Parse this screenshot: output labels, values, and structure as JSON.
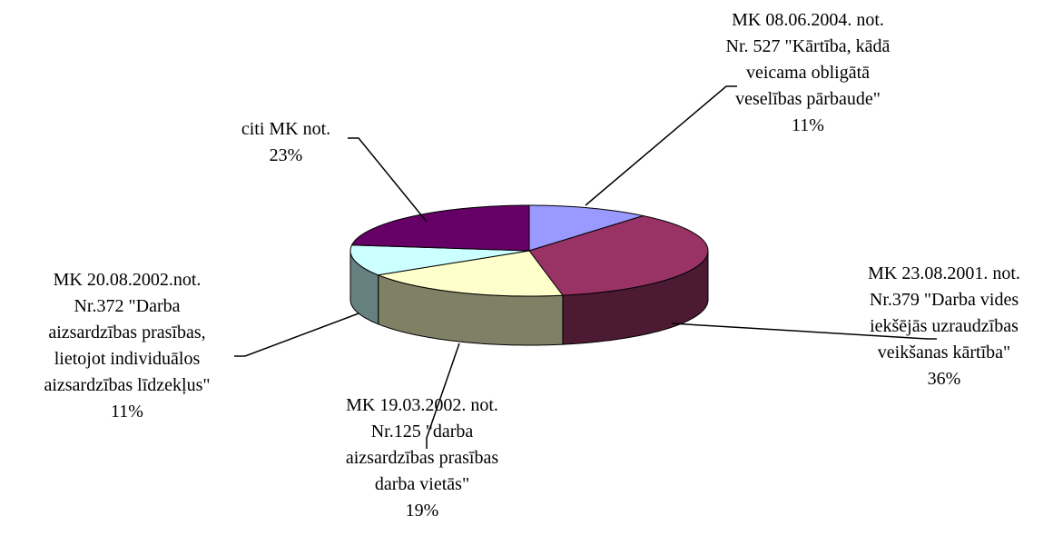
{
  "chart_data": {
    "type": "pie3d",
    "categories": [
      "MK 08.06.2004. not.\nNr. 527 \"Kārtība, kādā\nveicama obligātā\nveselības pārbaude\"",
      "MK 23.08.2001. not.\nNr.379 \"Darba vides\niekšējās uzraudzības\nveikšanas kārtība\"",
      "MK 19.03.2002. not.\nNr.125 \"darba\naizsardzības prasības\ndarba vietās\"",
      "MK 20.08.2002.not.\nNr.372 \"Darba\naizsardzības prasības,\nlietojot individuālos\naizsardzības līdzekļus\"",
      "citi MK not."
    ],
    "values": [
      11,
      36,
      19,
      11,
      23
    ],
    "value_labels": [
      "11%",
      "36%",
      "19%",
      "11%",
      "23%"
    ],
    "colors": [
      "#9999ff",
      "#993366",
      "#ffffcc",
      "#ccffff",
      "#660066"
    ]
  }
}
